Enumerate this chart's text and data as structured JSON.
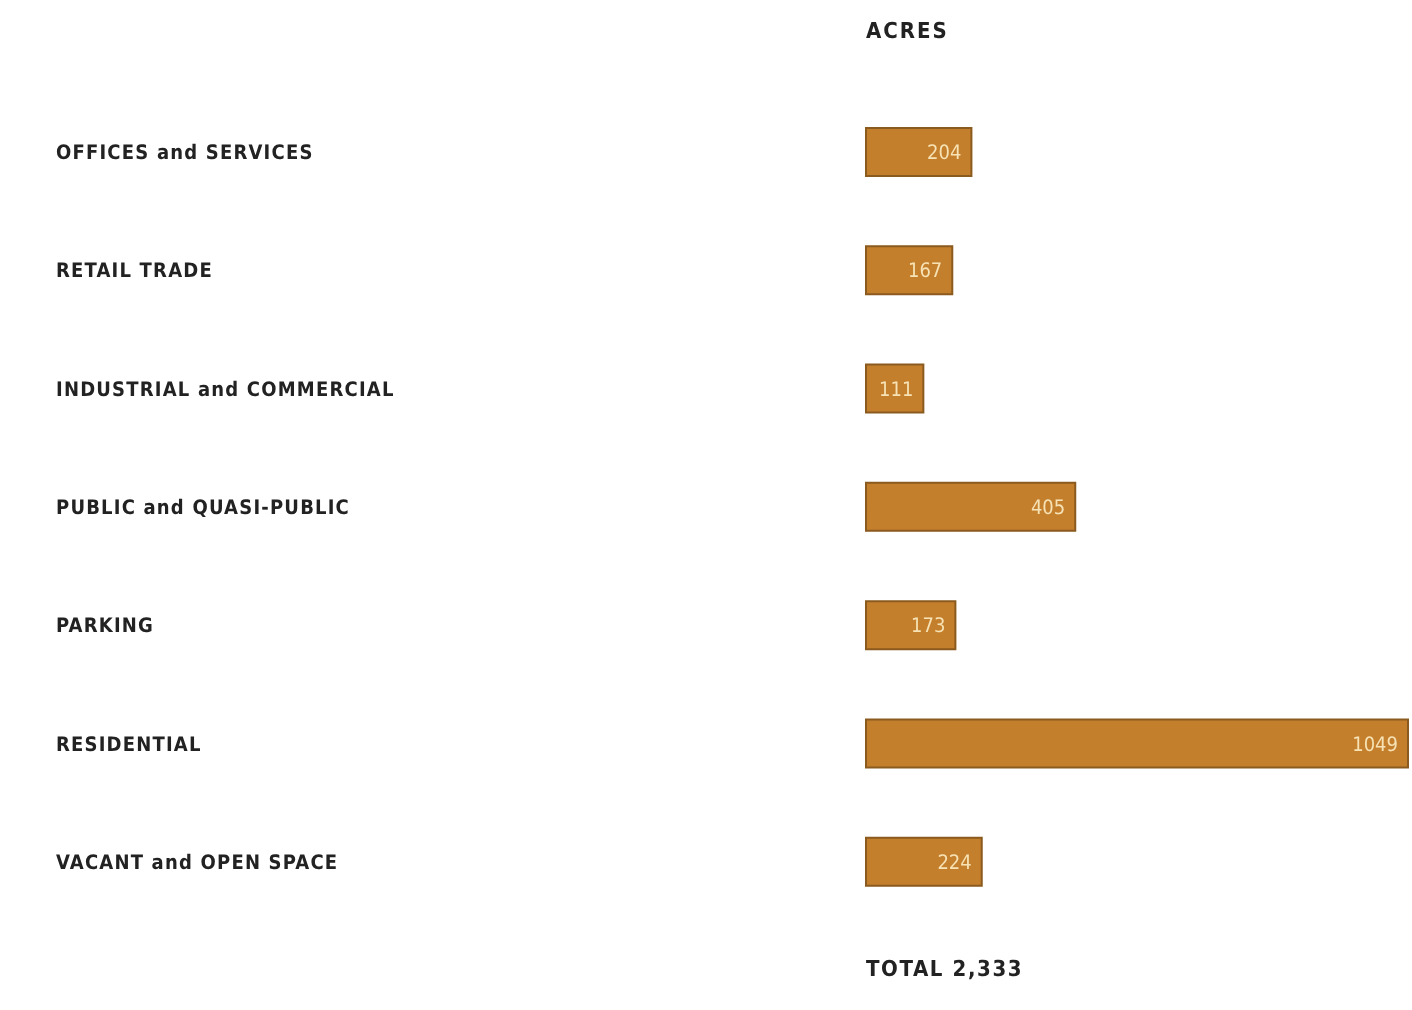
{
  "chart_data": {
    "type": "bar",
    "orientation": "horizontal",
    "title": "ACRES",
    "categories": [
      "OFFICES and SERVICES",
      "RETAIL TRADE",
      "INDUSTRIAL and COMMERCIAL",
      "PUBLIC and QUASI-PUBLIC",
      "PARKING",
      "RESIDENTIAL",
      "VACANT and OPEN SPACE"
    ],
    "values": [
      204,
      167,
      111,
      405,
      173,
      1049,
      224
    ],
    "color": "#c47f2c",
    "data_labels": true,
    "legend": false,
    "grid": false,
    "annotations": [
      "TOTAL 2,333"
    ]
  }
}
